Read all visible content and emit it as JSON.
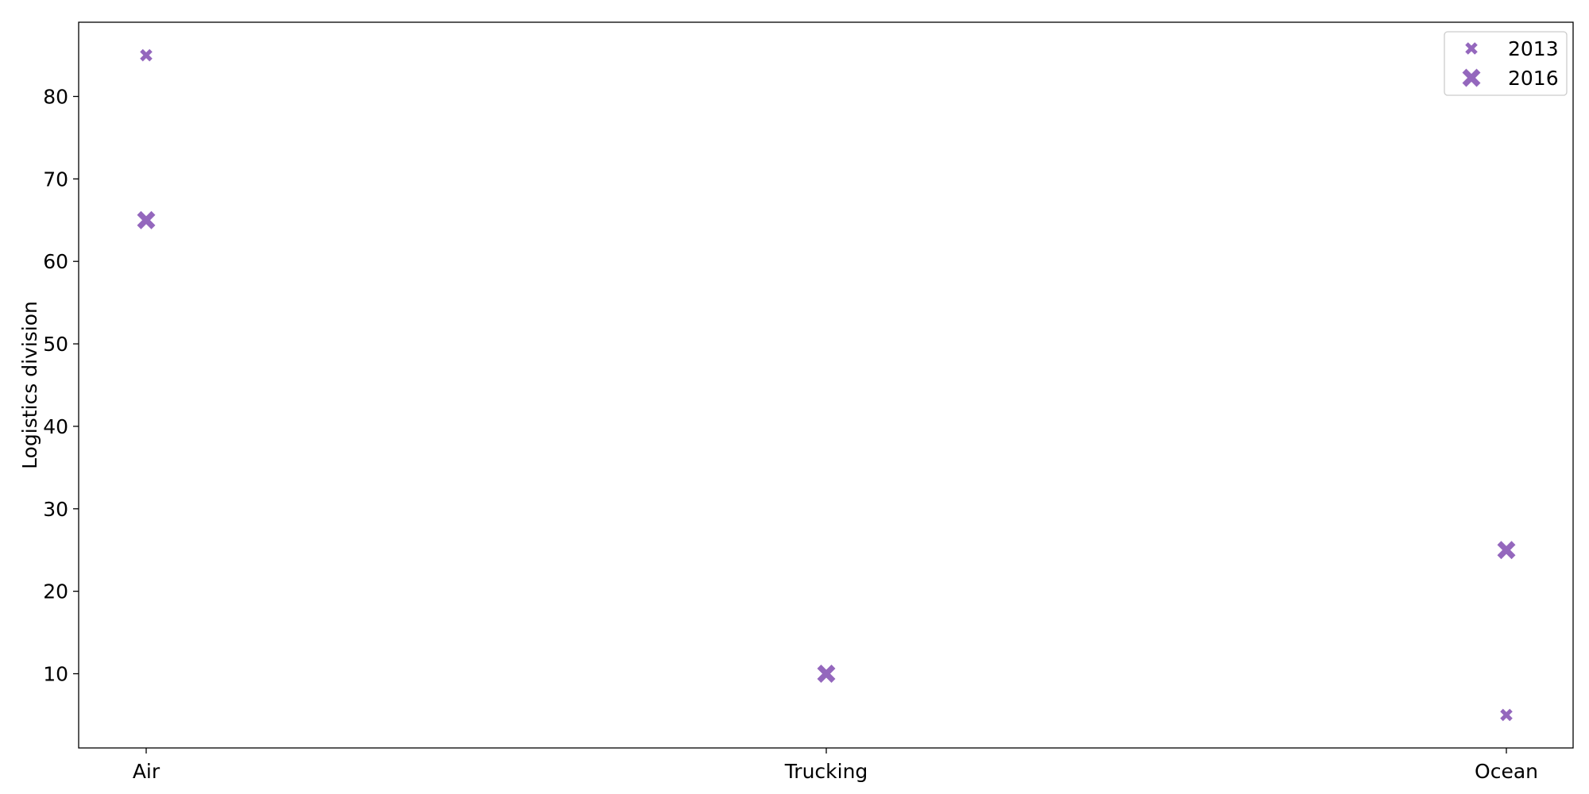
{
  "chart_data": {
    "type": "scatter",
    "categories": [
      "Air",
      "Trucking",
      "Ocean"
    ],
    "series": [
      {
        "name": "2013",
        "values": [
          85,
          10,
          5
        ],
        "marker": "x-small"
      },
      {
        "name": "2016",
        "values": [
          65,
          10,
          25
        ],
        "marker": "x-large"
      }
    ],
    "title": "",
    "xlabel": "",
    "ylabel": "Logistics division",
    "ylim": [
      1,
      89
    ],
    "yticks": [
      10,
      20,
      30,
      40,
      50,
      60,
      70,
      80
    ],
    "grid": false,
    "legend_position": "top-right",
    "marker_color": "#9467bd"
  }
}
